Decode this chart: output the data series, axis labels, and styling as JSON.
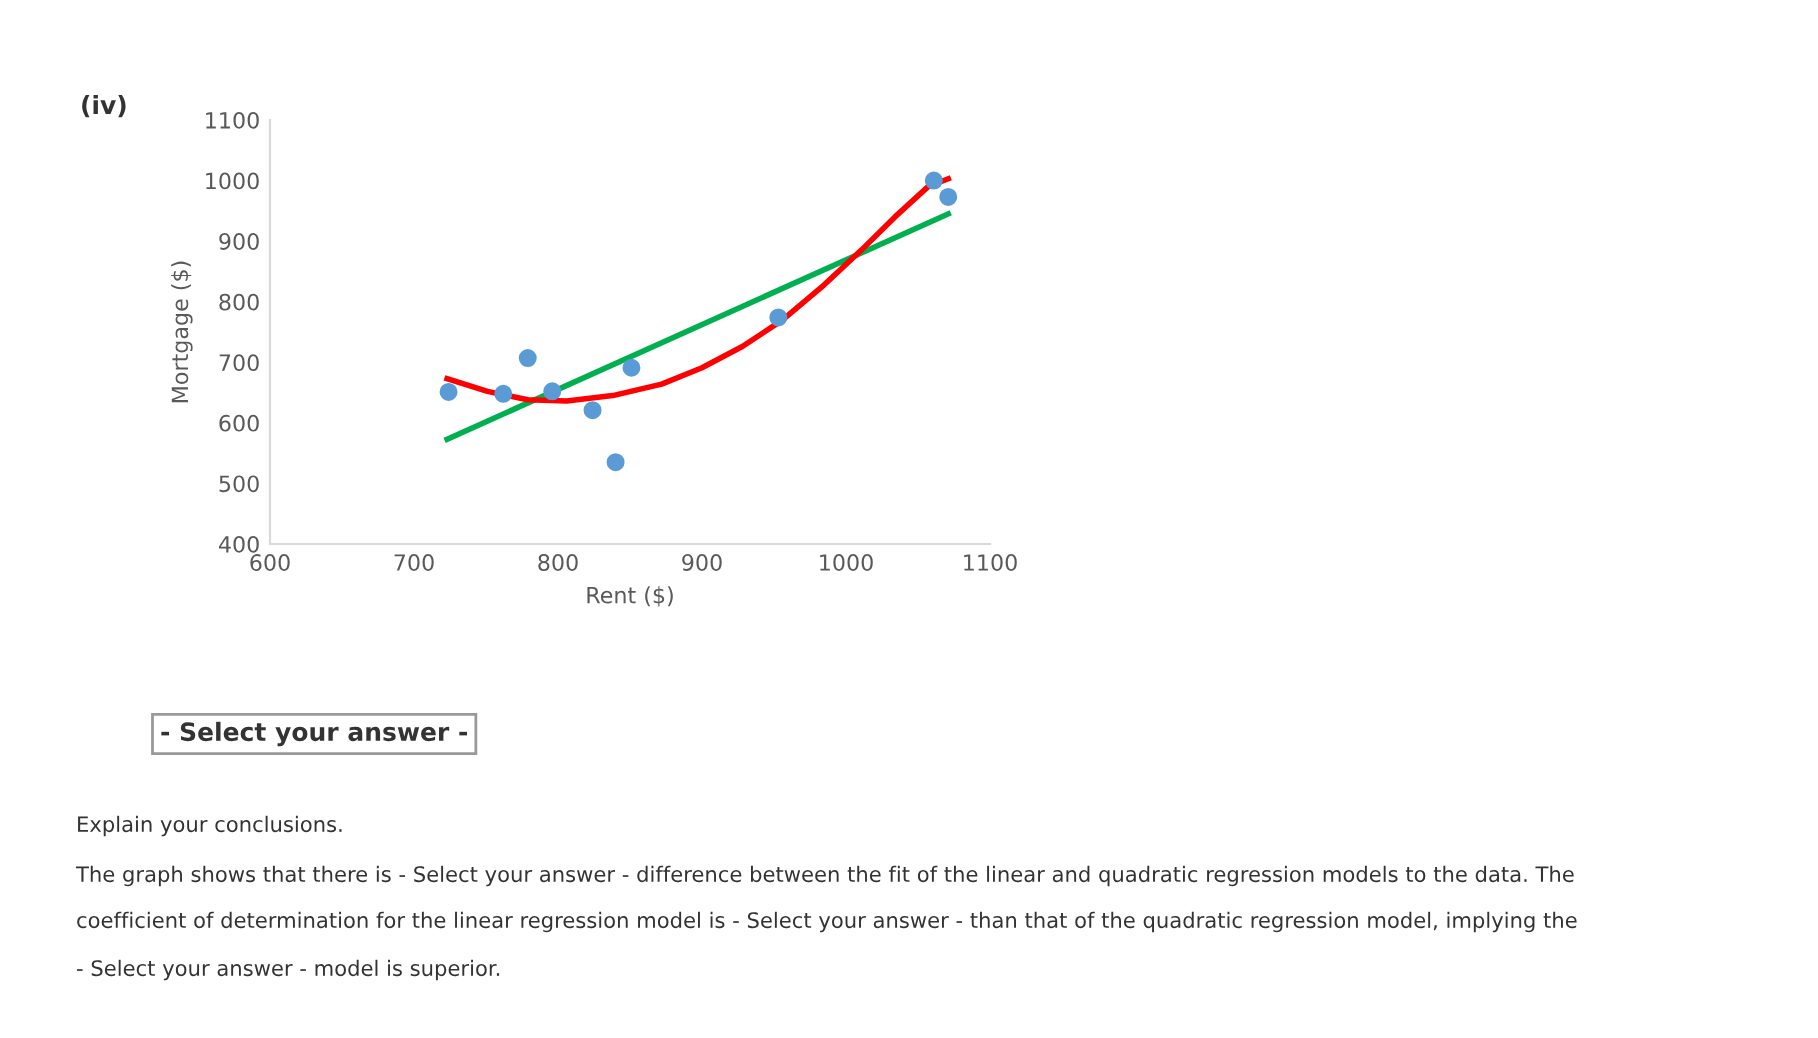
{
  "chart_data": {
    "type": "scatter",
    "title": "(iv)",
    "xlabel": "Rent ($)",
    "ylabel": "Mortgage ($)",
    "xlim": [
      600,
      1100
    ],
    "xticks": [
      600,
      700,
      800,
      900,
      1000,
      1100
    ],
    "ylim": [
      400,
      1100
    ],
    "yticks": [
      400,
      500,
      600,
      700,
      800,
      900,
      1000,
      1100
    ],
    "grid": false,
    "legend": false,
    "series": [
      {
        "marker": "circle",
        "color": "#5b9bd5",
        "x": [
          724,
          762,
          779,
          796,
          824,
          840,
          851,
          953,
          1061,
          1071
        ],
        "values": [
          651,
          648,
          707,
          652,
          621,
          535,
          691,
          774,
          1000,
          973
        ]
      },
      {
        "type": "line",
        "color": "#00b050",
        "marker": "none",
        "x": [
          723,
          1071
        ],
        "values": [
          573,
          945
        ]
      },
      {
        "type": "line",
        "color": "#ff0000",
        "marker": "none",
        "x": [
          723,
          751,
          779,
          806,
          838,
          872,
          900,
          928,
          956,
          983,
          1011,
          1034,
          1057,
          1071
        ],
        "values": [
          673,
          652,
          638,
          636,
          645,
          664,
          691,
          726,
          770,
          824,
          886,
          940,
          990,
          1003
        ]
      }
    ],
    "annotations": [
      "- Select your answer -",
      "Explain your conclusions.",
      "The graph shows that there is - Select your answer - difference between the fit of the linear and quadratic regression models to the data. The",
      "coefficient of determination for the linear regression model is - Select your answer - than that of the quadratic regression model, implying the",
      "- Select your answer - model is superior."
    ]
  }
}
